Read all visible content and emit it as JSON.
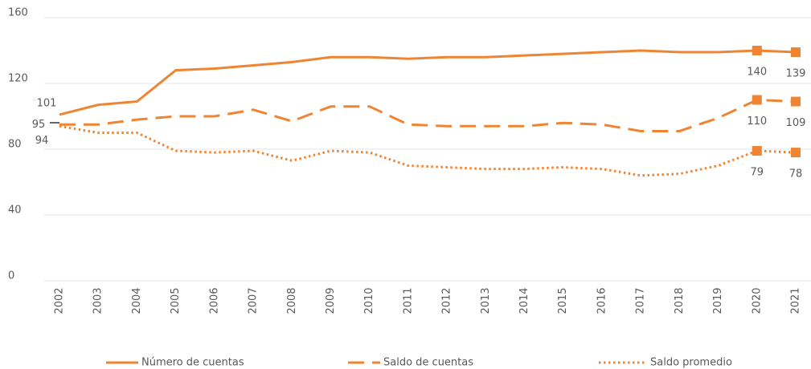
{
  "chart_data": {
    "type": "line",
    "categories": [
      "2002",
      "2003",
      "2004",
      "2005",
      "2006",
      "2007",
      "2008",
      "2009",
      "2010",
      "2011",
      "2012",
      "2013",
      "2014",
      "2015",
      "2016",
      "2017",
      "2018",
      "2019",
      "2020",
      "2021"
    ],
    "series": [
      {
        "name": "Número de cuentas",
        "color": "#ef8533",
        "style": "solid",
        "values": [
          101,
          107,
          109,
          128,
          129,
          131,
          133,
          136,
          136,
          135,
          136,
          136,
          137,
          138,
          139,
          140,
          139,
          139,
          140,
          139
        ]
      },
      {
        "name": "Saldo de cuentas",
        "color": "#ef8533",
        "style": "dashed",
        "values": [
          95,
          95,
          98,
          100,
          100,
          104,
          97,
          106,
          106,
          95,
          94,
          94,
          94,
          96,
          95,
          91,
          91,
          99,
          110,
          109
        ]
      },
      {
        "name": "Saldo promedio",
        "color": "#ef8533",
        "style": "dotted",
        "values": [
          94,
          90,
          90,
          79,
          78,
          79,
          73,
          79,
          78,
          70,
          69,
          68,
          68,
          69,
          68,
          64,
          65,
          70,
          79,
          78
        ]
      }
    ],
    "ylim": [
      0,
      160
    ],
    "yticks": [
      0,
      40,
      80,
      120,
      160
    ],
    "grid": true,
    "legend": "bottom"
  }
}
